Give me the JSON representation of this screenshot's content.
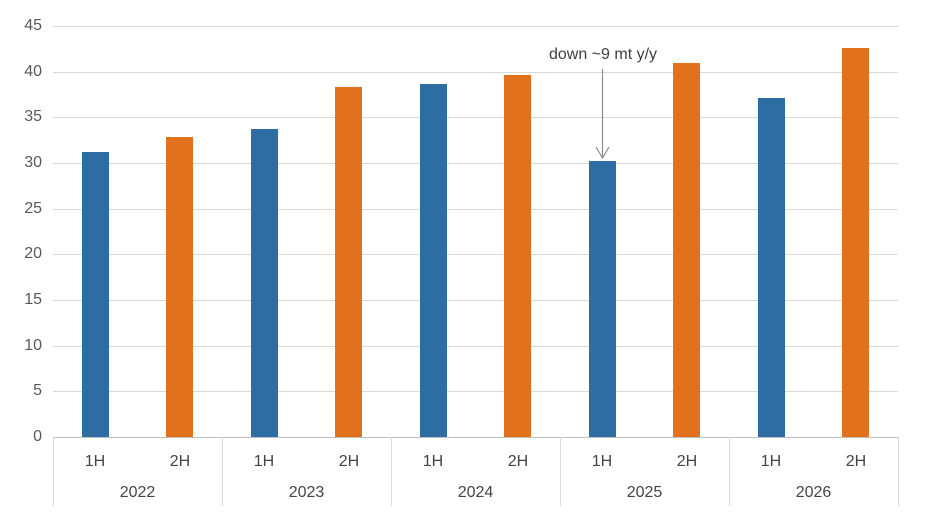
{
  "chart_data": {
    "type": "bar",
    "title": "",
    "xlabel": "",
    "ylabel": "",
    "categories": [
      "2022",
      "2023",
      "2024",
      "2025",
      "2026"
    ],
    "sub_categories": [
      "1H",
      "2H"
    ],
    "series": [
      {
        "name": "1H",
        "color": "#2e6da4",
        "values": [
          31.2,
          33.7,
          38.6,
          30.2,
          37.1
        ]
      },
      {
        "name": "2H",
        "color": "#e2711d",
        "values": [
          32.9,
          38.3,
          39.6,
          41.0,
          42.6
        ]
      }
    ],
    "ylim": [
      0,
      45
    ],
    "ytick_step": 5,
    "yticks": [
      0,
      5,
      10,
      15,
      20,
      25,
      30,
      35,
      40,
      45
    ],
    "grid": true,
    "legend_position": "none",
    "annotation": {
      "text": "down ~9 mt y/y",
      "target_category": "2025",
      "target_series": "1H"
    }
  },
  "colors": {
    "bar_1h": "#2e6da4",
    "bar_2h": "#e2711d",
    "gridline": "#d9d9d9",
    "axis_line": "#bfbfbf",
    "tick_label": "#595959",
    "category_label": "#444444",
    "annotation_text": "#3f3f3f",
    "annotation_arrow": "#8c8c8c"
  }
}
